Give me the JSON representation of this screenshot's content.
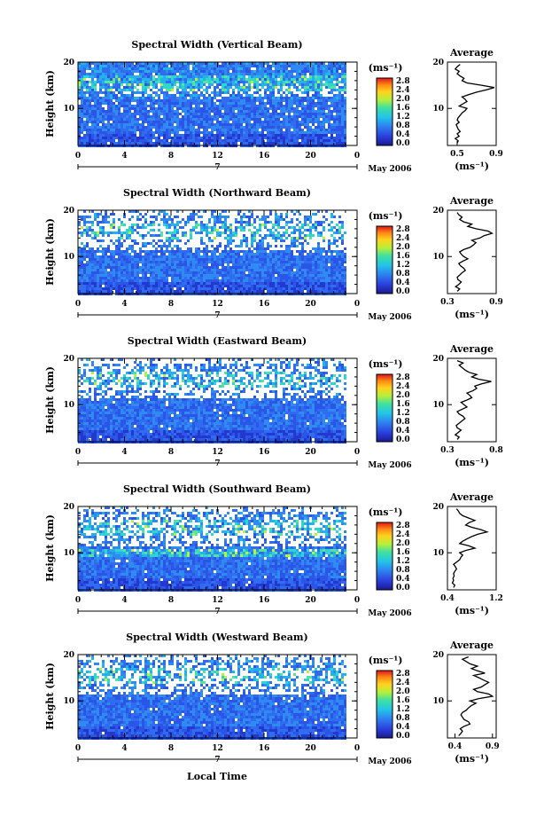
{
  "figure": {
    "xlabel": "Local Time",
    "unit_label": "(ms⁻¹)",
    "avg_title": "Average",
    "date_label": "May 2006",
    "mid_date": "7"
  },
  "chart_data": [
    {
      "type": "heatmap",
      "title": "Spectral Width (Vertical Beam)",
      "xlabel": "Local Time",
      "ylabel": "Height (km)",
      "x_ticks": [
        "0",
        "4",
        "8",
        "12",
        "16",
        "20",
        "0"
      ],
      "y_ticks": [
        "10",
        "20"
      ],
      "xlim": [
        0,
        24
      ],
      "ylim": [
        2,
        20
      ],
      "colorbar": {
        "unit": "(ms⁻¹)",
        "ticks": [
          "2.8",
          "2.4",
          "2.0",
          "1.6",
          "1.2",
          "0.8",
          "0.4",
          "0.0"
        ],
        "range": [
          0,
          2.8
        ]
      },
      "average_profile": {
        "title": "Average",
        "xlabel": "(ms⁻¹)",
        "x_ticks": [
          "0.5",
          "0.9"
        ],
        "xlim": [
          0.4,
          0.9
        ],
        "y_ticks": [
          "10",
          "20"
        ],
        "height_km": [
          2.5,
          3,
          3.5,
          4,
          4.5,
          5,
          5.5,
          6,
          6.5,
          7,
          7.5,
          8,
          8.5,
          9,
          9.5,
          10,
          10.5,
          11,
          11.5,
          12,
          12.5,
          13,
          13.5,
          14,
          14.5,
          15,
          15.5,
          16,
          16.5,
          17,
          17.5,
          18,
          18.5,
          19,
          19.5
        ],
        "width": [
          0.5,
          0.51,
          0.48,
          0.52,
          0.5,
          0.53,
          0.51,
          0.5,
          0.49,
          0.52,
          0.5,
          0.51,
          0.53,
          0.55,
          0.58,
          0.6,
          0.52,
          0.56,
          0.6,
          0.58,
          0.55,
          0.62,
          0.7,
          0.8,
          0.88,
          0.75,
          0.6,
          0.55,
          0.57,
          0.53,
          0.5,
          0.52,
          0.48,
          0.5,
          0.53
        ]
      }
    },
    {
      "type": "heatmap",
      "title": "Spectral Width (Northward Beam)",
      "xlabel": "Local Time",
      "ylabel": "Height (km)",
      "x_ticks": [
        "0",
        "4",
        "8",
        "12",
        "16",
        "20",
        "0"
      ],
      "y_ticks": [
        "10",
        "20"
      ],
      "xlim": [
        0,
        24
      ],
      "ylim": [
        2,
        20
      ],
      "colorbar": {
        "unit": "(ms⁻¹)",
        "ticks": [
          "2.8",
          "2.4",
          "2.0",
          "1.6",
          "1.2",
          "0.8",
          "0.4",
          "0.0"
        ],
        "range": [
          0,
          2.8
        ]
      },
      "average_profile": {
        "title": "Average",
        "xlabel": "(ms⁻¹)",
        "x_ticks": [
          "0.3",
          "0.9"
        ],
        "xlim": [
          0.3,
          0.9
        ],
        "y_ticks": [
          "10",
          "20"
        ],
        "height_km": [
          2.5,
          3,
          3.5,
          4,
          4.5,
          5,
          5.5,
          6,
          6.5,
          7,
          7.5,
          8,
          8.5,
          9,
          9.5,
          10,
          10.5,
          11,
          11.5,
          12,
          12.5,
          13,
          13.5,
          14,
          14.5,
          15,
          15.5,
          16,
          16.5,
          17,
          17.5,
          18,
          18.5,
          19,
          19.5
        ],
        "width": [
          0.42,
          0.45,
          0.4,
          0.44,
          0.47,
          0.43,
          0.42,
          0.45,
          0.48,
          0.52,
          0.5,
          0.46,
          0.44,
          0.49,
          0.55,
          0.5,
          0.47,
          0.45,
          0.5,
          0.58,
          0.62,
          0.65,
          0.6,
          0.7,
          0.75,
          0.85,
          0.8,
          0.65,
          0.55,
          0.6,
          0.5,
          0.45,
          0.48,
          0.44,
          0.42
        ]
      }
    },
    {
      "type": "heatmap",
      "title": "Spectral Width (Eastward Beam)",
      "xlabel": "Local Time",
      "ylabel": "Height (km)",
      "x_ticks": [
        "0",
        "4",
        "8",
        "12",
        "16",
        "20",
        "0"
      ],
      "y_ticks": [
        "10",
        "20"
      ],
      "xlim": [
        0,
        24
      ],
      "ylim": [
        2,
        20
      ],
      "colorbar": {
        "unit": "(ms⁻¹)",
        "ticks": [
          "2.8",
          "2.4",
          "2.0",
          "1.6",
          "1.2",
          "0.8",
          "0.4",
          "0.0"
        ],
        "range": [
          0,
          2.8
        ]
      },
      "average_profile": {
        "title": "Average",
        "xlabel": "(ms⁻¹)",
        "x_ticks": [
          "0.3",
          "0.8"
        ],
        "xlim": [
          0.3,
          0.8
        ],
        "y_ticks": [
          "10",
          "20"
        ],
        "height_km": [
          2.5,
          3,
          3.5,
          4,
          4.5,
          5,
          5.5,
          6,
          6.5,
          7,
          7.5,
          8,
          8.5,
          9,
          9.5,
          10,
          10.5,
          11,
          11.5,
          12,
          12.5,
          13,
          13.5,
          14,
          14.5,
          15,
          15.5,
          16,
          16.5,
          17,
          17.5,
          18,
          18.5,
          19,
          19.5
        ],
        "width": [
          0.4,
          0.42,
          0.38,
          0.41,
          0.44,
          0.4,
          0.39,
          0.42,
          0.45,
          0.48,
          0.46,
          0.42,
          0.4,
          0.45,
          0.5,
          0.47,
          0.44,
          0.5,
          0.55,
          0.53,
          0.5,
          0.56,
          0.6,
          0.58,
          0.65,
          0.75,
          0.62,
          0.55,
          0.6,
          0.52,
          0.48,
          0.45,
          0.42,
          0.46,
          0.4
        ]
      }
    },
    {
      "type": "heatmap",
      "title": "Spectral Width (Southward Beam)",
      "xlabel": "Local Time",
      "ylabel": "Height (km)",
      "x_ticks": [
        "0",
        "4",
        "8",
        "12",
        "16",
        "20",
        "0"
      ],
      "y_ticks": [
        "10",
        "20"
      ],
      "xlim": [
        0,
        24
      ],
      "ylim": [
        2,
        20
      ],
      "colorbar": {
        "unit": "(ms⁻¹)",
        "ticks": [
          "2.8",
          "2.4",
          "2.0",
          "1.6",
          "1.2",
          "0.8",
          "0.4",
          "0.0"
        ],
        "range": [
          0,
          2.8
        ]
      },
      "average_profile": {
        "title": "Average",
        "xlabel": "(ms⁻¹)",
        "x_ticks": [
          "0.4",
          "1.2"
        ],
        "xlim": [
          0.4,
          1.2
        ],
        "y_ticks": [
          "10",
          "20"
        ],
        "height_km": [
          2.5,
          3,
          3.5,
          4,
          4.5,
          5,
          5.5,
          6,
          6.5,
          7,
          7.5,
          8,
          8.5,
          9,
          9.5,
          10,
          10.5,
          11,
          11.5,
          12,
          12.5,
          13,
          13.5,
          14,
          14.5,
          15,
          15.5,
          16,
          16.5,
          17,
          17.5,
          18,
          18.5,
          19,
          19.5
        ],
        "width": [
          0.5,
          0.52,
          0.48,
          0.5,
          0.49,
          0.51,
          0.5,
          0.52,
          0.55,
          0.53,
          0.5,
          0.55,
          0.6,
          0.62,
          0.65,
          0.6,
          0.7,
          0.85,
          0.75,
          0.6,
          0.65,
          0.72,
          0.8,
          0.9,
          1.05,
          0.95,
          0.8,
          0.7,
          0.75,
          0.85,
          0.75,
          0.65,
          0.6,
          0.58,
          0.55
        ]
      }
    },
    {
      "type": "heatmap",
      "title": "Spectral Width (Westward Beam)",
      "xlabel": "Local Time",
      "ylabel": "Height (km)",
      "x_ticks": [
        "0",
        "4",
        "8",
        "12",
        "16",
        "20",
        "0"
      ],
      "y_ticks": [
        "10",
        "20"
      ],
      "xlim": [
        0,
        24
      ],
      "ylim": [
        2,
        20
      ],
      "colorbar": {
        "unit": "(ms⁻¹)",
        "ticks": [
          "2.8",
          "2.4",
          "2.0",
          "1.6",
          "1.2",
          "0.8",
          "0.4",
          "0.0"
        ],
        "range": [
          0,
          2.8
        ]
      },
      "average_profile": {
        "title": "Average",
        "xlabel": "(ms⁻¹)",
        "x_ticks": [
          "0.4",
          "0.9"
        ],
        "xlim": [
          0.3,
          0.95
        ],
        "y_ticks": [
          "10",
          "20"
        ],
        "height_km": [
          2.5,
          3,
          3.5,
          4,
          4.5,
          5,
          5.5,
          6,
          6.5,
          7,
          7.5,
          8,
          8.5,
          9,
          9.5,
          10,
          10.5,
          11,
          11.5,
          12,
          12.5,
          13,
          13.5,
          14,
          14.5,
          15,
          15.5,
          16,
          16.5,
          17,
          17.5,
          18,
          18.5,
          19,
          19.5
        ],
        "width": [
          0.45,
          0.48,
          0.5,
          0.47,
          0.52,
          0.6,
          0.58,
          0.52,
          0.5,
          0.48,
          0.5,
          0.55,
          0.58,
          0.62,
          0.68,
          0.6,
          0.72,
          0.9,
          0.85,
          0.7,
          0.65,
          0.75,
          0.8,
          0.85,
          0.78,
          0.72,
          0.65,
          0.8,
          0.7,
          0.62,
          0.7,
          0.6,
          0.55,
          0.5,
          0.58
        ]
      }
    }
  ]
}
